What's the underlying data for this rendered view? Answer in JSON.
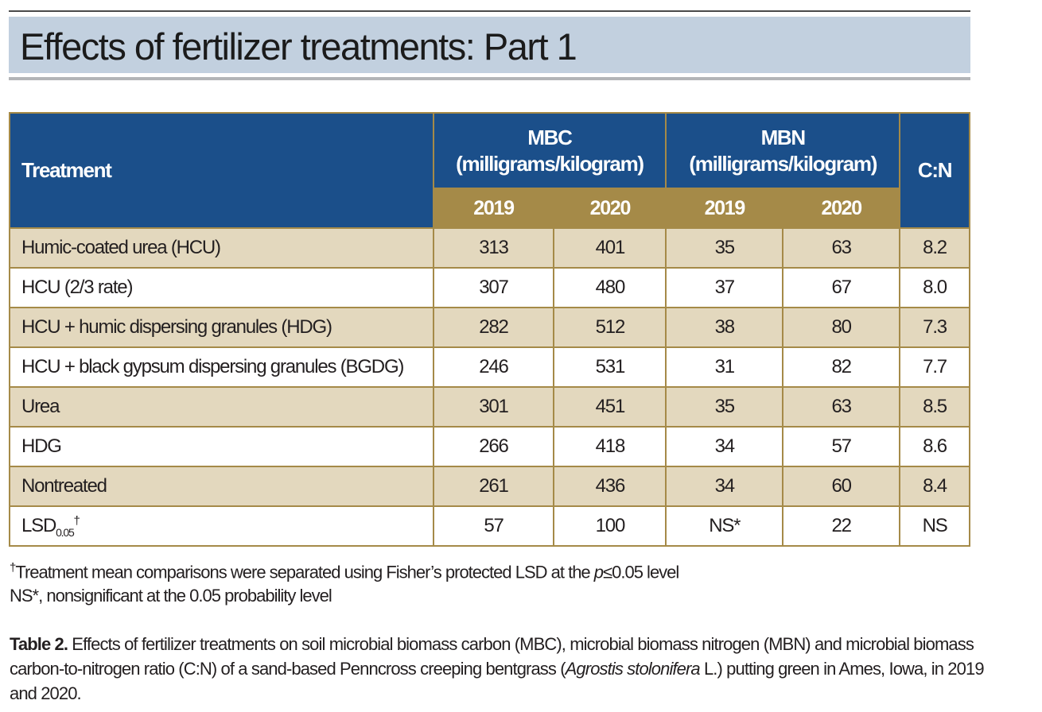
{
  "title": "Effects of fertilizer treatments: Part 1",
  "table": {
    "header": {
      "treatment": "Treatment",
      "mbc": "MBC",
      "mbc_unit": "(milligrams/kilogram)",
      "mbn": "MBN",
      "mbn_unit": "(milligrams/kilogram)",
      "cn": "C:N",
      "years": [
        "2019",
        "2020",
        "2019",
        "2020"
      ]
    },
    "rows": [
      {
        "name": "Humic-coated urea (HCU)",
        "values": [
          "313",
          "401",
          "35",
          "63",
          "8.2"
        ]
      },
      {
        "name": "HCU (2/3 rate)",
        "values": [
          "307",
          "480",
          "37",
          "67",
          "8.0"
        ]
      },
      {
        "name": "HCU + humic dispersing granules (HDG)",
        "values": [
          "282",
          "512",
          "38",
          "80",
          "7.3"
        ]
      },
      {
        "name": "HCU + black gypsum dispersing granules (BGDG)",
        "values": [
          "246",
          "531",
          "31",
          "82",
          "7.7"
        ]
      },
      {
        "name": "Urea",
        "values": [
          "301",
          "451",
          "35",
          "63",
          "8.5"
        ]
      },
      {
        "name": "HDG",
        "values": [
          "266",
          "418",
          "34",
          "57",
          "8.6"
        ]
      },
      {
        "name": "Nontreated",
        "values": [
          "261",
          "436",
          "34",
          "60",
          "8.4"
        ]
      }
    ],
    "lsd": {
      "name": "LSD",
      "sub": "0.05",
      "mark": "†",
      "values": [
        "57",
        "100",
        "NS*",
        "22",
        "NS"
      ]
    }
  },
  "notes": {
    "dagger": "†",
    "note1_a": "Treatment mean comparisons were separated using Fisher’s protected LSD at the ",
    "note1_p": "p",
    "note1_b": "≤0.05 level",
    "note2": "NS*, nonsignificant at the 0.05 probability level"
  },
  "caption": {
    "label": "Table 2.",
    "text_a": " Effects of fertilizer treatments on soil microbial biomass carbon (MBC), microbial biomass nitrogen (MBN) and microbial biomass carbon-to-nitrogen ratio (C:N) of a sand-based Penncross creeping bentgrass (",
    "species": "Agrostis stolonifera",
    "text_b": " L.) putting green in Ames, Iowa, in 2019 and 2020."
  },
  "colors": {
    "header_blue": "#1b4f8a",
    "header_gold": "#a58a48",
    "row_shade": "#e3d8be",
    "title_band": "#c2d0df"
  }
}
